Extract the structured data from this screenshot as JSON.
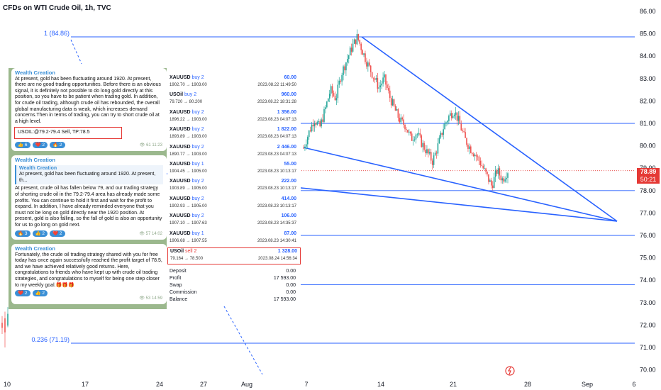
{
  "title": "CFDs on WTI Crude Oil, 1h, TVC",
  "colors": {
    "line": "#2962ff",
    "up": "#26a69a",
    "down": "#ef5350",
    "price_tag": "#e53935"
  },
  "chart_data": {
    "type": "candlestick",
    "y_ticks": [
      "86.00",
      "85.00",
      "84.00",
      "83.00",
      "82.00",
      "81.00",
      "80.00",
      "79.00",
      "78.00",
      "77.00",
      "76.00",
      "75.00",
      "74.00",
      "73.00",
      "72.00",
      "71.00",
      "70.00"
    ],
    "x_ticks": [
      "10",
      "17",
      "24",
      "27",
      "Aug",
      "7",
      "14",
      "21",
      "28",
      "Sep",
      "6"
    ],
    "ylim": [
      70,
      86
    ],
    "fib_levels": [
      {
        "label": "1 (84.86)",
        "value": 84.86
      },
      {
        "label": "0.236 (71.19)",
        "value": 71.19
      }
    ],
    "horizontal_levels": [
      81.0,
      78.0,
      76.0,
      73.8
    ],
    "current_price": "78.89",
    "countdown": "50:21",
    "close_path": [
      79.9,
      80.6,
      81.2,
      80.8,
      81.6,
      82.5,
      82.1,
      83.2,
      83.8,
      84.4,
      84.86,
      84.2,
      83.6,
      83.1,
      82.6,
      83.0,
      82.2,
      81.6,
      81.1,
      80.9,
      80.3,
      80.6,
      80.1,
      79.7,
      79.3,
      80.0,
      80.8,
      81.3,
      81.6,
      81.0,
      80.3,
      79.9,
      79.6,
      79.2,
      78.7,
      78.2,
      78.9,
      78.5,
      78.89
    ]
  },
  "chat": {
    "messages": [
      {
        "sender": "Wealth Creation",
        "text": "At present, gold has been fluctuating around 1920. At present, there are no good trading opportunities. Before there is an obvious signal, it is definitely not possible to do long gold directly at this position, so you have to be patient when trading gold. In addition, for crude oil trading, although crude oil has rebounded, the overall global manufacturing data is weak, which increases demand concerns.Then in terms of trading, you can try to short crude oil at a high level.",
        "highlight": "USOIL:@79.2-79.4 Sell, TP:78.5",
        "reactions": [
          "👍 6",
          "❤️ 2",
          "🔥 2"
        ],
        "views": "61",
        "time": "11:23"
      },
      {
        "sender": "Wealth Creation",
        "reply_sender": "Wealth Creation",
        "reply_text": "At present, gold has been fluctuating around 1920. At present, th...",
        "text": "At present, crude oil has fallen below 79, and our trading strategy of shorting crude oil in the 79.2-79.4 area has already made some profits. You can continue to hold it first and wait for the profit to expand. In addition, I have already reminded everyone that you must not be long on gold directly near the 1920 position. At present, gold is also falling, so the fall of gold is also an opportunity for us to go long on gold next.",
        "reactions": [
          "🔥 3",
          "👍 2",
          "❤️ 2"
        ],
        "views": "57",
        "time": "14:02"
      },
      {
        "sender": "Wealth Creation",
        "text": "Fortunately, the crude oil trading strategy shared with you for free today has once again successfully reached the profit target of 78.5, and we have achieved relatively good returns. Here, congratulations to friends who have kept up with crude oil trading strategies, and congratulations to myself for being one step closer to my weekly goal.🎁🎁🎁",
        "reactions": [
          "❤️ 2",
          "👍 2"
        ],
        "views": "53",
        "time": "14:59"
      }
    ]
  },
  "trades": {
    "rows": [
      {
        "symbol": "XAUUSD",
        "side": "buy 2",
        "prices": "1902.70 → 1903.00",
        "profit": "60.00",
        "date": "2023.08.22 11:49:50"
      },
      {
        "symbol": "USOil",
        "side": "buy 2",
        "prices": "79.720 → 80.200",
        "profit": "960.00",
        "date": "2023.08.22 18:31:28"
      },
      {
        "symbol": "XAUUSD",
        "side": "buy 2",
        "prices": "1896.22 → 1903.00",
        "profit": "1 356.00",
        "date": "2023.08.23 04:07:13"
      },
      {
        "symbol": "XAUUSD",
        "side": "buy 2",
        "prices": "1893.89 → 1903.00",
        "profit": "1 822.00",
        "date": "2023.08.23 04:07:13"
      },
      {
        "symbol": "XAUUSD",
        "side": "buy 2",
        "prices": "1890.77 → 1903.00",
        "profit": "2 446.00",
        "date": "2023.08.23 04:07:13"
      },
      {
        "symbol": "XAUUSD",
        "side": "buy 1",
        "prices": "1904.45 → 1905.00",
        "profit": "55.00",
        "date": "2023.08.23 10:13:17"
      },
      {
        "symbol": "XAUUSD",
        "side": "buy 2",
        "prices": "1903.89 → 1905.00",
        "profit": "222.00",
        "date": "2023.08.23 10:13:17"
      },
      {
        "symbol": "XAUUSD",
        "side": "buy 2",
        "prices": "1902.93 → 1905.00",
        "profit": "414.00",
        "date": "2023.08.23 10:13:17"
      },
      {
        "symbol": "XAUUSD",
        "side": "buy 2",
        "prices": "1907.10 → 1907.63",
        "profit": "106.00",
        "date": "2023.08.23 14:35:37"
      },
      {
        "symbol": "XAUUSD",
        "side": "buy 1",
        "prices": "1906.68 → 1907.55",
        "profit": "87.00",
        "date": "2023.08.23 14:30:41"
      },
      {
        "symbol": "USOil",
        "side": "sell 2",
        "prices": "79.164 → 78.500",
        "profit": "1 328.00",
        "date": "2023.08.24 14:56:34"
      }
    ],
    "summary": [
      {
        "label": "Deposit",
        "value": "0.00"
      },
      {
        "label": "Profit",
        "value": "17 593.00"
      },
      {
        "label": "Swap",
        "value": "0.00"
      },
      {
        "label": "Commission",
        "value": "0.00"
      },
      {
        "label": "Balance",
        "value": "17 593.00"
      }
    ]
  }
}
